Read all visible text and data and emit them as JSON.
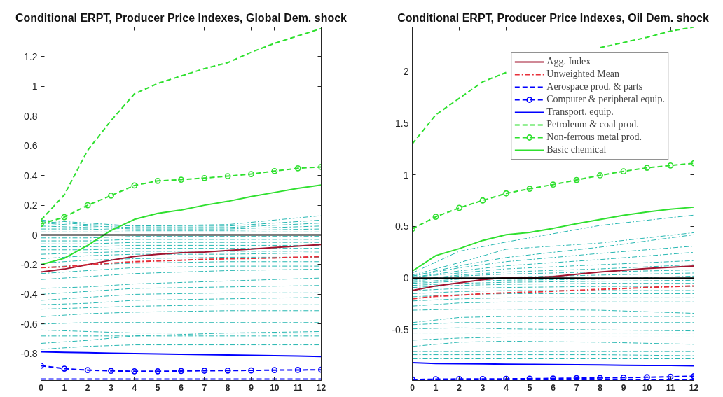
{
  "chart_data": [
    {
      "type": "line",
      "title": "Conditional ERPT, Producer Price Indexes, Global Dem. shock",
      "x": [
        0,
        1,
        2,
        3,
        4,
        5,
        6,
        7,
        8,
        9,
        10,
        11,
        12
      ],
      "xlim": [
        0,
        12
      ],
      "xticks": [
        0,
        1,
        2,
        3,
        4,
        5,
        6,
        7,
        8,
        9,
        10,
        11,
        12
      ],
      "ylim": [
        -0.98,
        1.4
      ],
      "yticks": [
        -0.8,
        -0.6,
        -0.4,
        -0.2,
        0,
        0.2,
        0.4,
        0.6,
        0.8,
        1,
        1.2
      ],
      "legend": false,
      "ref_lines": [
        {
          "axis": "y",
          "value": 0,
          "color": "#000000"
        }
      ],
      "series": [
        {
          "color": "#26b7b2",
          "line_style": "dashdot",
          "x": [
            0,
            2,
            4,
            8,
            12
          ],
          "values": [
            0.1,
            0.08,
            0.06,
            0.07,
            0.13
          ]
        },
        {
          "color": "#26b7b2",
          "line_style": "dashdot",
          "x": [
            0,
            2,
            4,
            8,
            12
          ],
          "values": [
            0.09,
            0.07,
            0.06,
            0.06,
            0.1
          ]
        },
        {
          "color": "#26b7b2",
          "line_style": "dashdot",
          "x": [
            0,
            2,
            4,
            8,
            12
          ],
          "values": [
            0.08,
            0.06,
            0.05,
            0.05,
            0.08
          ]
        },
        {
          "color": "#26b7b2",
          "line_style": "dashdot",
          "x": [
            0,
            2,
            4,
            8,
            12
          ],
          "values": [
            0.06,
            0.05,
            0.04,
            0.04,
            0.06
          ]
        },
        {
          "color": "#26b7b2",
          "line_style": "dashdot",
          "x": [
            0,
            2,
            4,
            8,
            12
          ],
          "values": [
            0.04,
            0.04,
            0.03,
            0.03,
            0.04
          ]
        },
        {
          "color": "#26b7b2",
          "line_style": "dashdot",
          "x": [
            0,
            2,
            4,
            8,
            12
          ],
          "values": [
            0.02,
            0.02,
            0.02,
            0.02,
            0.02
          ]
        },
        {
          "color": "#26b7b2",
          "line_style": "dashdot",
          "x": [
            0,
            2,
            4,
            8,
            12
          ],
          "values": [
            -0.02,
            -0.02,
            -0.01,
            -0.01,
            -0.01
          ]
        },
        {
          "color": "#26b7b2",
          "line_style": "dashdot",
          "x": [
            0,
            2,
            4,
            8,
            12
          ],
          "values": [
            -0.04,
            -0.04,
            -0.03,
            -0.03,
            -0.03
          ]
        },
        {
          "color": "#26b7b2",
          "line_style": "dashdot",
          "x": [
            0,
            2,
            4,
            8,
            12
          ],
          "values": [
            -0.06,
            -0.06,
            -0.05,
            -0.05,
            -0.05
          ]
        },
        {
          "color": "#26b7b2",
          "line_style": "dashdot",
          "x": [
            0,
            2,
            4,
            8,
            12
          ],
          "values": [
            -0.08,
            -0.08,
            -0.07,
            -0.07,
            -0.07
          ]
        },
        {
          "color": "#26b7b2",
          "line_style": "dashdot",
          "x": [
            0,
            2,
            4,
            8,
            12
          ],
          "values": [
            -0.1,
            -0.1,
            -0.09,
            -0.09,
            -0.09
          ]
        },
        {
          "color": "#26b7b2",
          "line_style": "dashdot",
          "x": [
            0,
            2,
            4,
            8,
            12
          ],
          "values": [
            -0.13,
            -0.12,
            -0.11,
            -0.11,
            -0.11
          ]
        },
        {
          "color": "#26b7b2",
          "line_style": "dashdot",
          "x": [
            0,
            2,
            4,
            8,
            12
          ],
          "values": [
            -0.16,
            -0.14,
            -0.13,
            -0.13,
            -0.12
          ]
        },
        {
          "color": "#26b7b2",
          "line_style": "dashdot",
          "x": [
            0,
            2,
            4,
            8,
            12
          ],
          "values": [
            -0.19,
            -0.17,
            -0.16,
            -0.15,
            -0.15
          ]
        },
        {
          "color": "#26b7b2",
          "line_style": "dashdot",
          "x": [
            0,
            2,
            4,
            8,
            12
          ],
          "values": [
            -0.22,
            -0.2,
            -0.19,
            -0.18,
            -0.18
          ]
        },
        {
          "color": "#26b7b2",
          "line_style": "dashdot",
          "x": [
            0,
            2,
            4,
            8,
            12
          ],
          "values": [
            -0.26,
            -0.24,
            -0.22,
            -0.21,
            -0.21
          ]
        },
        {
          "color": "#26b7b2",
          "line_style": "dashdot",
          "x": [
            0,
            2,
            4,
            8,
            12
          ],
          "values": [
            -0.3,
            -0.28,
            -0.26,
            -0.24,
            -0.23
          ]
        },
        {
          "color": "#26b7b2",
          "line_style": "dashdot",
          "x": [
            0,
            2,
            4,
            8,
            12
          ],
          "values": [
            -0.36,
            -0.35,
            -0.33,
            -0.31,
            -0.29
          ]
        },
        {
          "color": "#26b7b2",
          "line_style": "dashdot",
          "x": [
            0,
            2,
            4,
            8,
            12
          ],
          "values": [
            -0.4,
            -0.38,
            -0.36,
            -0.35,
            -0.34
          ]
        },
        {
          "color": "#26b7b2",
          "line_style": "dashdot",
          "x": [
            0,
            2,
            4,
            8,
            12
          ],
          "values": [
            -0.44,
            -0.42,
            -0.4,
            -0.39,
            -0.39
          ]
        },
        {
          "color": "#26b7b2",
          "line_style": "dashdot",
          "x": [
            0,
            2,
            4,
            8,
            12
          ],
          "values": [
            -0.47,
            -0.46,
            -0.44,
            -0.43,
            -0.42
          ]
        },
        {
          "color": "#26b7b2",
          "line_style": "dashdot",
          "x": [
            0,
            2,
            4,
            8,
            12
          ],
          "values": [
            -0.5,
            -0.49,
            -0.48,
            -0.47,
            -0.47
          ]
        },
        {
          "color": "#26b7b2",
          "line_style": "dashdot",
          "x": [
            0,
            2,
            4,
            8,
            12
          ],
          "values": [
            -0.55,
            -0.53,
            -0.52,
            -0.51,
            -0.51
          ]
        },
        {
          "color": "#26b7b2",
          "line_style": "dashdot",
          "x": [
            0,
            2,
            4,
            8,
            12
          ],
          "values": [
            -0.6,
            -0.59,
            -0.59,
            -0.59,
            -0.59
          ]
        },
        {
          "color": "#26b7b2",
          "line_style": "dashdot",
          "x": [
            0,
            2,
            4,
            8,
            12
          ],
          "values": [
            -0.64,
            -0.65,
            -0.66,
            -0.66,
            -0.66
          ]
        },
        {
          "color": "#26b7b2",
          "line_style": "dashdot",
          "x": [
            0,
            2,
            4,
            8,
            12
          ],
          "values": [
            -0.68,
            -0.68,
            -0.68,
            -0.68,
            -0.68
          ]
        },
        {
          "color": "#26b7b2",
          "line_style": "dashdot",
          "x": [
            0,
            2,
            4,
            8,
            12
          ],
          "values": [
            -0.73,
            -0.71,
            -0.68,
            -0.66,
            -0.65
          ]
        },
        {
          "color": "#26b7b2",
          "line_style": "dashdot",
          "x": [
            0,
            2,
            4,
            8,
            12
          ],
          "values": [
            -0.77,
            -0.75,
            -0.74,
            -0.74,
            -0.74
          ]
        },
        {
          "color": "#a2142f",
          "line_style": "solid",
          "values": [
            -0.25,
            -0.23,
            -0.2,
            -0.17,
            -0.145,
            -0.13,
            -0.12,
            -0.115,
            -0.105,
            -0.095,
            -0.085,
            -0.075,
            -0.065
          ]
        },
        {
          "color": "#e8303a",
          "line_style": "dashdot",
          "values": [
            -0.22,
            -0.215,
            -0.2,
            -0.19,
            -0.18,
            -0.175,
            -0.17,
            -0.165,
            -0.16,
            -0.158,
            -0.155,
            -0.15,
            -0.145
          ]
        },
        {
          "color": "#0000ff",
          "line_style": "dashed",
          "values": [
            -0.97,
            -0.97,
            -0.97,
            -0.97,
            -0.97,
            -0.97,
            -0.97,
            -0.97,
            -0.97,
            -0.97,
            -0.97,
            -0.97,
            -0.97
          ]
        },
        {
          "color": "#0000ff",
          "line_style": "dashed",
          "marker": "circle",
          "values": [
            -0.88,
            -0.9,
            -0.91,
            -0.915,
            -0.918,
            -0.918,
            -0.916,
            -0.914,
            -0.913,
            -0.912,
            -0.91,
            -0.909,
            -0.908
          ]
        },
        {
          "color": "#0000ff",
          "line_style": "solid",
          "values": [
            -0.787,
            -0.79,
            -0.793,
            -0.796,
            -0.799,
            -0.801,
            -0.803,
            -0.806,
            -0.808,
            -0.81,
            -0.813,
            -0.815,
            -0.818
          ]
        },
        {
          "color": "#2fe02f",
          "line_style": "dashed",
          "values": [
            0.1,
            0.27,
            0.57,
            0.77,
            0.95,
            1.02,
            1.07,
            1.12,
            1.16,
            1.23,
            1.29,
            1.34,
            1.39
          ]
        },
        {
          "color": "#2fe02f",
          "line_style": "dashed",
          "marker": "circle",
          "values": [
            0.074,
            0.12,
            0.2,
            0.265,
            0.333,
            0.364,
            0.372,
            0.383,
            0.396,
            0.41,
            0.43,
            0.449,
            0.458
          ]
        },
        {
          "color": "#2fe02f",
          "line_style": "solid",
          "values": [
            -0.2,
            -0.157,
            -0.07,
            0.03,
            0.105,
            0.145,
            0.168,
            0.2,
            0.226,
            0.258,
            0.286,
            0.314,
            0.336
          ]
        }
      ]
    },
    {
      "type": "line",
      "title": "Conditional ERPT, Producer Price Indexes, Oil Dem. shock",
      "x": [
        0,
        1,
        2,
        3,
        4,
        5,
        6,
        7,
        8,
        9,
        10,
        11,
        12
      ],
      "xlim": [
        0,
        12
      ],
      "xticks": [
        0,
        1,
        2,
        3,
        4,
        5,
        6,
        7,
        8,
        9,
        10,
        11,
        12
      ],
      "ylim": [
        -0.99,
        2.43
      ],
      "yticks": [
        -0.5,
        0,
        0.5,
        1,
        1.5,
        2
      ],
      "legend": "top right",
      "ref_lines": [
        {
          "axis": "y",
          "value": 0,
          "color": "#000000"
        }
      ],
      "series": [
        {
          "color": "#26b7b2",
          "line_style": "dashdot",
          "x": [
            0,
            2,
            4,
            8,
            12
          ],
          "values": [
            0.05,
            0.26,
            0.35,
            0.51,
            0.61
          ]
        },
        {
          "color": "#26b7b2",
          "line_style": "dashdot",
          "x": [
            0,
            2,
            4,
            8,
            12
          ],
          "values": [
            0.03,
            0.15,
            0.28,
            0.34,
            0.44
          ]
        },
        {
          "color": "#26b7b2",
          "line_style": "dashdot",
          "x": [
            0,
            2,
            4,
            8,
            12
          ],
          "values": [
            0.02,
            0.12,
            0.2,
            0.3,
            0.42
          ]
        },
        {
          "color": "#26b7b2",
          "line_style": "dashdot",
          "x": [
            0,
            2,
            4,
            8,
            12
          ],
          "values": [
            0.02,
            0.1,
            0.16,
            0.24,
            0.31
          ]
        },
        {
          "color": "#26b7b2",
          "line_style": "dashdot",
          "x": [
            0,
            2,
            4,
            8,
            12
          ],
          "values": [
            0.01,
            0.07,
            0.12,
            0.18,
            0.25
          ]
        },
        {
          "color": "#26b7b2",
          "line_style": "dashdot",
          "x": [
            0,
            2,
            4,
            8,
            12
          ],
          "values": [
            0.01,
            0.05,
            0.09,
            0.13,
            0.17
          ]
        },
        {
          "color": "#26b7b2",
          "line_style": "dashdot",
          "x": [
            0,
            2,
            4,
            8,
            12
          ],
          "values": [
            -0.02,
            0.03,
            0.06,
            0.09,
            0.13
          ]
        },
        {
          "color": "#26b7b2",
          "line_style": "dashdot",
          "x": [
            0,
            2,
            4,
            8,
            12
          ],
          "values": [
            -0.03,
            0.02,
            0.04,
            0.06,
            0.08
          ]
        },
        {
          "color": "#26b7b2",
          "line_style": "dashdot",
          "x": [
            0,
            2,
            4,
            8,
            12
          ],
          "values": [
            -0.04,
            -0.01,
            0.01,
            0.03,
            0.05
          ]
        },
        {
          "color": "#26b7b2",
          "line_style": "dashdot",
          "x": [
            0,
            2,
            4,
            8,
            12
          ],
          "values": [
            -0.05,
            -0.03,
            -0.02,
            -0.01,
            0.02
          ]
        },
        {
          "color": "#26b7b2",
          "line_style": "dashdot",
          "x": [
            0,
            2,
            4,
            8,
            12
          ],
          "values": [
            -0.07,
            -0.05,
            -0.04,
            -0.03,
            -0.02
          ]
        },
        {
          "color": "#26b7b2",
          "line_style": "dashdot",
          "x": [
            0,
            2,
            4,
            8,
            12
          ],
          "values": [
            -0.09,
            -0.07,
            -0.06,
            -0.05,
            -0.05
          ]
        },
        {
          "color": "#26b7b2",
          "line_style": "dashdot",
          "x": [
            0,
            2,
            4,
            8,
            12
          ],
          "values": [
            -0.12,
            -0.1,
            -0.09,
            -0.08,
            -0.08
          ]
        },
        {
          "color": "#26b7b2",
          "line_style": "dashdot",
          "x": [
            0,
            2,
            4,
            8,
            12
          ],
          "values": [
            -0.15,
            -0.13,
            -0.12,
            -0.12,
            -0.12
          ]
        },
        {
          "color": "#26b7b2",
          "line_style": "dashdot",
          "x": [
            0,
            2,
            4,
            8,
            12
          ],
          "values": [
            -0.18,
            -0.16,
            -0.15,
            -0.15,
            -0.15
          ]
        },
        {
          "color": "#26b7b2",
          "line_style": "dashdot",
          "x": [
            0,
            2,
            4,
            8,
            12
          ],
          "values": [
            -0.22,
            -0.2,
            -0.19,
            -0.19,
            -0.19
          ]
        },
        {
          "color": "#26b7b2",
          "line_style": "dashdot",
          "x": [
            0,
            2,
            4,
            8,
            12
          ],
          "values": [
            -0.27,
            -0.24,
            -0.23,
            -0.23,
            -0.23
          ]
        },
        {
          "color": "#26b7b2",
          "line_style": "dashdot",
          "x": [
            0,
            2,
            4,
            8,
            12
          ],
          "values": [
            -0.31,
            -0.3,
            -0.3,
            -0.31,
            -0.34
          ]
        },
        {
          "color": "#26b7b2",
          "line_style": "dashdot",
          "x": [
            0,
            2,
            4,
            8,
            12
          ],
          "values": [
            -0.43,
            -0.38,
            -0.37,
            -0.37,
            -0.37
          ]
        },
        {
          "color": "#26b7b2",
          "line_style": "dashdot",
          "x": [
            0,
            2,
            4,
            8,
            12
          ],
          "values": [
            -0.45,
            -0.43,
            -0.43,
            -0.43,
            -0.43
          ]
        },
        {
          "color": "#26b7b2",
          "line_style": "dashdot",
          "x": [
            0,
            2,
            4,
            8,
            12
          ],
          "values": [
            -0.49,
            -0.48,
            -0.49,
            -0.5,
            -0.51
          ]
        },
        {
          "color": "#26b7b2",
          "line_style": "dashdot",
          "x": [
            0,
            2,
            4,
            8,
            12
          ],
          "values": [
            -0.53,
            -0.53,
            -0.53,
            -0.53,
            -0.53
          ]
        },
        {
          "color": "#26b7b2",
          "line_style": "dashdot",
          "x": [
            0,
            2,
            4,
            8,
            12
          ],
          "values": [
            -0.6,
            -0.58,
            -0.57,
            -0.57,
            -0.57
          ]
        },
        {
          "color": "#26b7b2",
          "line_style": "dashdot",
          "x": [
            0,
            2,
            4,
            8,
            12
          ],
          "values": [
            -0.66,
            -0.62,
            -0.61,
            -0.62,
            -0.64
          ]
        },
        {
          "color": "#26b7b2",
          "line_style": "dashdot",
          "x": [
            0,
            2,
            4,
            8,
            12
          ],
          "values": [
            -0.71,
            -0.71,
            -0.71,
            -0.71,
            -0.71
          ]
        },
        {
          "color": "#26b7b2",
          "line_style": "dashdot",
          "x": [
            0,
            2,
            4,
            8,
            12
          ],
          "values": [
            -0.74,
            -0.74,
            -0.74,
            -0.74,
            -0.75
          ]
        },
        {
          "color": "#26b7b2",
          "line_style": "dashdot",
          "x": [
            0,
            2,
            4,
            8,
            12
          ],
          "values": [
            -0.78,
            -0.78,
            -0.78,
            -0.78,
            -0.78
          ]
        },
        {
          "name": "Agg. Index",
          "color": "#a2142f",
          "line_style": "solid",
          "values": [
            -0.12,
            -0.075,
            -0.045,
            -0.015,
            0.005,
            0.005,
            0.015,
            0.038,
            0.06,
            0.076,
            0.094,
            0.105,
            0.117
          ]
        },
        {
          "name": "Unweighted Mean",
          "color": "#e8303a",
          "line_style": "dashdot",
          "values": [
            -0.2,
            -0.176,
            -0.165,
            -0.15,
            -0.142,
            -0.135,
            -0.126,
            -0.118,
            -0.108,
            -0.1,
            -0.09,
            -0.082,
            -0.075
          ]
        },
        {
          "name": "Aerospace prod. & parts",
          "color": "#0000ff",
          "line_style": "dashed",
          "values": [
            -0.985,
            -0.985,
            -0.985,
            -0.985,
            -0.985,
            -0.985,
            -0.985,
            -0.985,
            -0.985,
            -0.985,
            -0.985,
            -0.985,
            -0.985
          ]
        },
        {
          "name": "Computer & peripheral equip.",
          "color": "#0000ff",
          "line_style": "dashed",
          "marker": "circle",
          "values": [
            -0.98,
            -0.977,
            -0.975,
            -0.975,
            -0.974,
            -0.972,
            -0.97,
            -0.967,
            -0.965,
            -0.962,
            -0.958,
            -0.954,
            -0.948
          ]
        },
        {
          "name": "Transport. equip.",
          "color": "#0000ff",
          "line_style": "solid",
          "values": [
            -0.818,
            -0.825,
            -0.828,
            -0.83,
            -0.832,
            -0.834,
            -0.836,
            -0.838,
            -0.84,
            -0.842,
            -0.844,
            -0.845,
            -0.847
          ]
        },
        {
          "name": "Petroleum & coal prod.",
          "color": "#2fe02f",
          "line_style": "dashed",
          "values": [
            1.3,
            1.58,
            1.74,
            1.9,
            1.99,
            null,
            null,
            null,
            2.23,
            2.28,
            2.33,
            2.39,
            2.43
          ]
        },
        {
          "name": "Non-ferrous metal prod.",
          "color": "#2fe02f",
          "line_style": "dashed",
          "marker": "circle",
          "values": [
            0.477,
            0.594,
            0.68,
            0.752,
            0.82,
            0.865,
            0.905,
            0.95,
            0.995,
            1.034,
            1.068,
            1.09,
            1.112
          ]
        },
        {
          "name": "Basic chemical",
          "color": "#2fe02f",
          "line_style": "solid",
          "values": [
            0.068,
            0.218,
            0.286,
            0.365,
            0.42,
            0.443,
            0.482,
            0.527,
            0.567,
            0.608,
            0.64,
            0.667,
            0.687
          ]
        }
      ]
    }
  ]
}
